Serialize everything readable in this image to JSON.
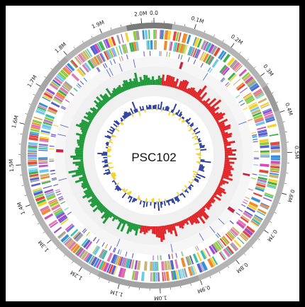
{
  "genome": {
    "name": "PSC102",
    "scale_labels": [
      "0.0",
      "0.1M",
      "0.2M",
      "0.3M",
      "0.4M",
      "0.5M",
      "0.6M",
      "0.7M",
      "0.8M",
      "0.9M",
      "1.0M",
      "1.1M",
      "1.2M",
      "1.3M",
      "1.4M",
      "1.5M",
      "1.6M",
      "1.7M",
      "1.8M",
      "1.9M",
      "2.0M"
    ],
    "total_size_mb": 2.03
  },
  "colors": {
    "background": "#ffffff",
    "frame": "#000000",
    "outer_ring": "#b4b4b4",
    "outer_ring_dark": "#7a7a7a",
    "track_background": "#f0f0f0",
    "gc_skew_positive": "#1f9a3b",
    "gc_skew_negative": "#e1262a",
    "gc_content_high": "#2c3fa0",
    "gc_content_low": "#f2d21c",
    "rrna": "#cc2244",
    "cog_palette": [
      "#e8463a",
      "#f08a2c",
      "#f4d12b",
      "#8fcf3f",
      "#3fb04e",
      "#3bbfb0",
      "#3a8fd8",
      "#5a5fd0",
      "#9a4fd0",
      "#d04fb8",
      "#e07ab0",
      "#a0a0a0",
      "#6fc8e8",
      "#c8b478"
    ]
  }
}
